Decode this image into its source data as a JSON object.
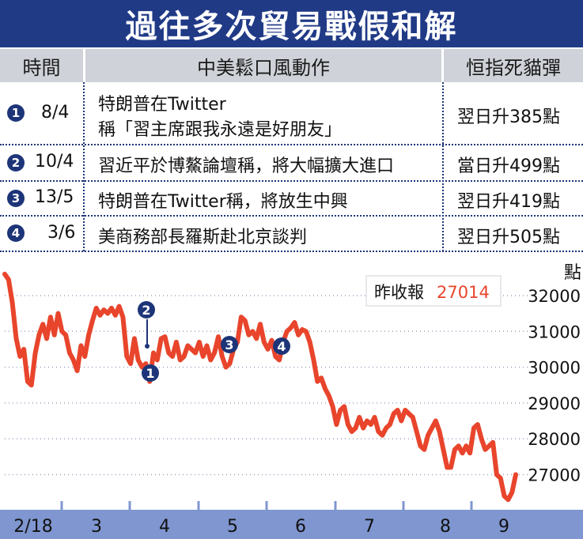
{
  "title": "過往多次貿易戰假和解",
  "table": {
    "headers": [
      "時間",
      "中美鬆口風動作",
      "恒指死貓彈"
    ],
    "rows": [
      {
        "marker": "1",
        "date": "8/4",
        "action_line1": "特朗普在Twitter",
        "action_line2": "稱「習主席跟我永遠是好朋友」",
        "rebound": "翌日升385點"
      },
      {
        "marker": "2",
        "date": "10/4",
        "action_line1": "習近平於博鰲論壇稱，將大幅擴大進口",
        "action_line2": "",
        "rebound": "當日升499點"
      },
      {
        "marker": "3",
        "date": "13/5",
        "action_line1": "特朗普在Twitter稱，將放生中興",
        "action_line2": "",
        "rebound": "翌日升419點"
      },
      {
        "marker": "4",
        "date": "3/6",
        "action_line1": "美商務部長羅斯赴北京談判",
        "action_line2": "",
        "rebound": "翌日升505點"
      }
    ]
  },
  "colors": {
    "accent": "#203a86",
    "line": "#e8452c",
    "axis_bar": "#7f96d0",
    "header_bg": "#cfd2d8"
  },
  "chart_data": {
    "type": "line",
    "ylabel": "點",
    "ylim": [
      26000,
      32800
    ],
    "yticks": [
      "32000",
      "31000",
      "30000",
      "29000",
      "28000",
      "27000"
    ],
    "ytick_values": [
      32000,
      31000,
      30000,
      29000,
      28000,
      27000
    ],
    "xlabels": [
      "2/18",
      "3",
      "4",
      "5",
      "6",
      "7",
      "8",
      "9"
    ],
    "annotation": {
      "label": "昨收報",
      "value": "27014"
    },
    "markers": [
      "1",
      "2",
      "3",
      "4"
    ],
    "series": [
      {
        "values": [
          32600,
          32450,
          31800,
          30800,
          30300,
          30500,
          29600,
          29500,
          30400,
          30900,
          31200,
          30800,
          31400,
          30900,
          31500,
          31000,
          30900,
          30400,
          30200,
          29900,
          30600,
          30300,
          30900,
          31300,
          31650,
          31450,
          31600,
          31500,
          31650,
          31450,
          31700,
          31400,
          30300,
          30100,
          30800,
          30200,
          30000,
          30100,
          29600,
          30400,
          30200,
          30800,
          30850,
          30400,
          30300,
          30700,
          30200,
          30300,
          30600,
          30500,
          30400,
          30700,
          30300,
          30600,
          30200,
          30400,
          30850,
          30300,
          30000,
          30100,
          30500,
          30700,
          31400,
          31300,
          30900,
          31000,
          30800,
          31200,
          30700,
          30500,
          30750,
          30300,
          30200,
          30700,
          31000,
          31100,
          31250,
          30900,
          31050,
          31000,
          30700,
          30200,
          29600,
          29700,
          29400,
          29200,
          28900,
          28400,
          28800,
          28900,
          28400,
          28200,
          28300,
          28600,
          28300,
          28500,
          28400,
          28600,
          28200,
          28100,
          28300,
          28400,
          28700,
          28800,
          28500,
          28800,
          28700,
          28600,
          28200,
          27800,
          27700,
          28100,
          28300,
          28500,
          28200,
          27700,
          27200,
          27200,
          27700,
          27800,
          27600,
          27800,
          27600,
          28300,
          28400,
          28000,
          27700,
          27800,
          27900,
          27000,
          26900,
          26400,
          26300,
          26500,
          27000
        ]
      }
    ]
  }
}
